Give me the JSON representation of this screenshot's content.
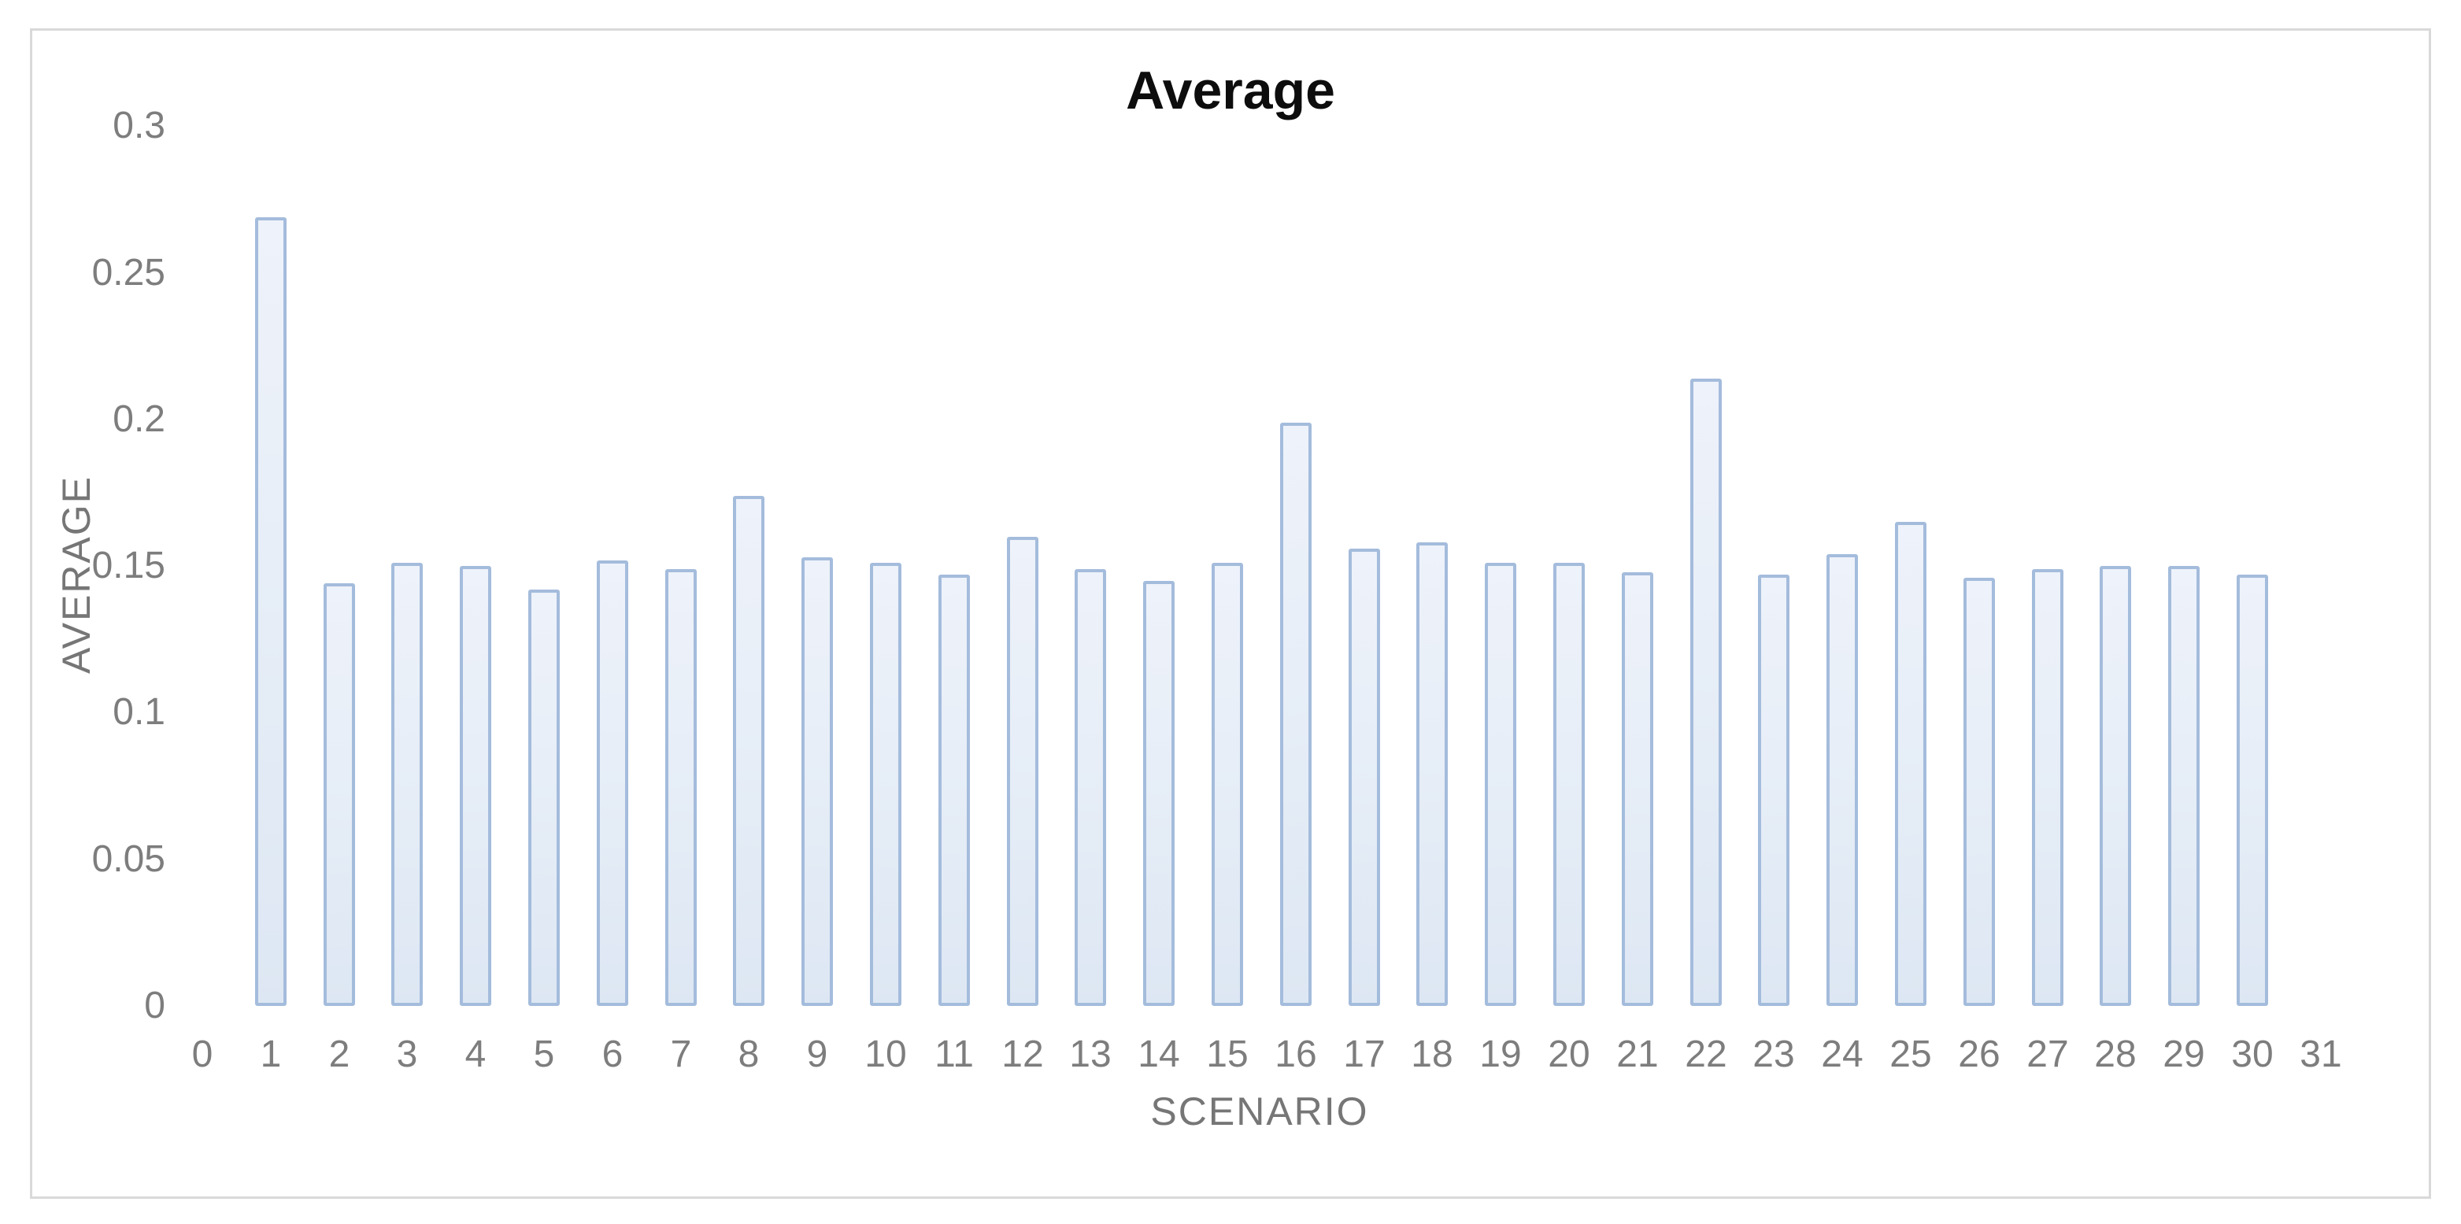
{
  "title": "Average",
  "axes": {
    "x_label": "SCENARIO",
    "y_label": "AVERAGE"
  },
  "chart_data": {
    "type": "bar",
    "title": "Average",
    "xlabel": "SCENARIO",
    "ylabel": "AVERAGE",
    "categories": [
      1,
      2,
      3,
      4,
      5,
      6,
      7,
      8,
      9,
      10,
      11,
      12,
      13,
      14,
      15,
      16,
      17,
      18,
      19,
      20,
      21,
      22,
      23,
      24,
      25,
      26,
      27,
      28,
      29,
      30
    ],
    "values": [
      0.269,
      0.144,
      0.151,
      0.15,
      0.142,
      0.152,
      0.149,
      0.174,
      0.153,
      0.151,
      0.147,
      0.16,
      0.149,
      0.145,
      0.151,
      0.199,
      0.156,
      0.158,
      0.151,
      0.151,
      0.148,
      0.214,
      0.147,
      0.154,
      0.165,
      0.146,
      0.149,
      0.15,
      0.15,
      0.147
    ],
    "x_tick_labels": [
      "0",
      "1",
      "2",
      "3",
      "4",
      "5",
      "6",
      "7",
      "8",
      "9",
      "10",
      "11",
      "12",
      "13",
      "14",
      "15",
      "16",
      "17",
      "18",
      "19",
      "20",
      "21",
      "22",
      "23",
      "24",
      "25",
      "26",
      "27",
      "28",
      "29",
      "30",
      "31"
    ],
    "y_tick_labels": [
      "0",
      "0.05",
      "0.1",
      "0.15",
      "0.2",
      "0.25",
      "0.3"
    ],
    "y_tick_values": [
      0,
      0.05,
      0.1,
      0.15,
      0.2,
      0.25,
      0.3
    ],
    "ylim": [
      0,
      0.3
    ],
    "xlim": [
      0,
      31
    ],
    "grid": false,
    "legend": "none",
    "colors": {
      "bar_fill": "#e7eef7",
      "bar_border": "#a4bcdc",
      "tick_text": "#7d7d7d",
      "axis_title_text": "#767676",
      "title_text": "#0d0d0d",
      "chart_border": "#d9d9d9",
      "background": "#ffffff"
    }
  }
}
